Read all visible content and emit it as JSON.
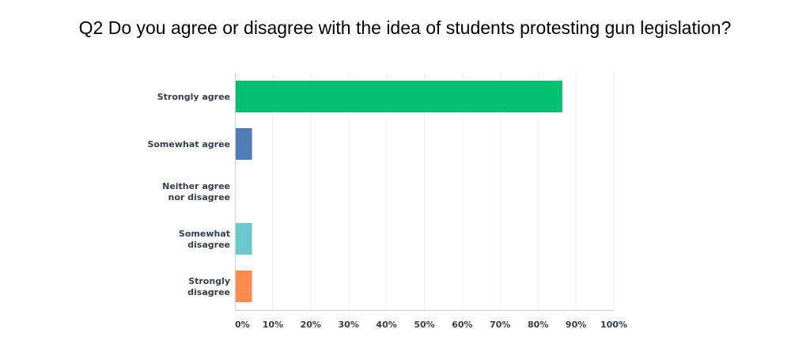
{
  "chart_data": {
    "type": "bar",
    "orientation": "horizontal",
    "title": "Q2 Do you agree or disagree with the idea of students protesting gun legislation?",
    "categories": [
      [
        "Strongly agree"
      ],
      [
        "Somewhat agree"
      ],
      [
        "Neither agree",
        "nor disagree"
      ],
      [
        "Somewhat",
        "disagree"
      ],
      [
        "Strongly",
        "disagree"
      ]
    ],
    "values": [
      86.4,
      4.5,
      0,
      4.5,
      4.5
    ],
    "colors": [
      "#00bf6f",
      "#507cb6",
      "#f9be00",
      "#6bc8cd",
      "#ff8b4f"
    ],
    "xlim": [
      0,
      100
    ],
    "xticks": [
      0,
      10,
      20,
      30,
      40,
      50,
      60,
      70,
      80,
      90,
      100
    ],
    "xtick_labels": [
      "0%",
      "10%",
      "20%",
      "30%",
      "40%",
      "50%",
      "60%",
      "70%",
      "80%",
      "90%",
      "100%"
    ],
    "grid": true,
    "legend": "none",
    "xlabel": "",
    "ylabel": ""
  }
}
